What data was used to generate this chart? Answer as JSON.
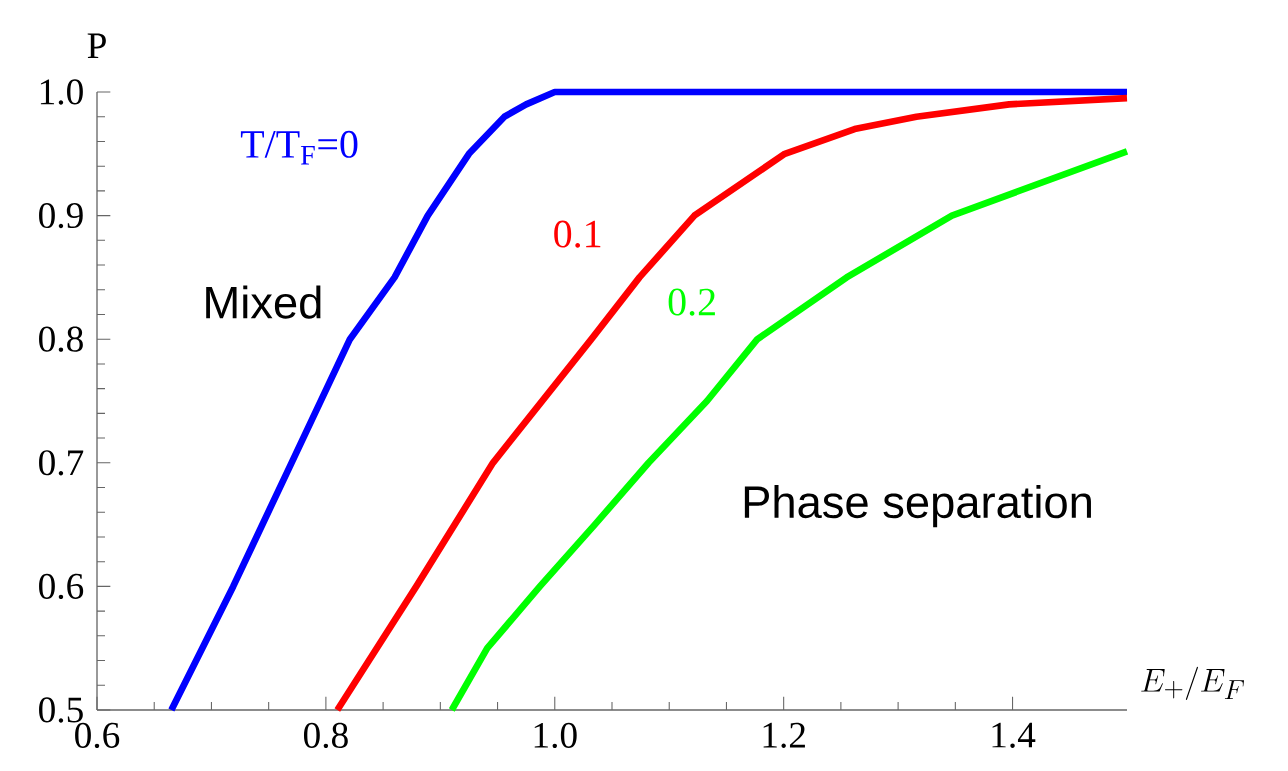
{
  "chart_data": {
    "type": "line",
    "xlabel": "E_{+}/E_{F}",
    "ylabel": "P",
    "xlim": [
      0.6,
      1.5
    ],
    "ylim": [
      0.5,
      1.0
    ],
    "xticks": [
      0.6,
      0.8,
      {
        "value": 1.0,
        "label": "1.0"
      },
      1.2,
      1.4
    ],
    "yticks": [
      0.5,
      0.6,
      0.7,
      0.8,
      0.9,
      {
        "value": 1.0,
        "label": "1.0"
      }
    ],
    "grid": false,
    "marker": "none",
    "line_style": "solid",
    "annotations": [
      "Mixed",
      "Phase separation"
    ],
    "series": [
      {
        "name": "T/T$_{F}$=0",
        "color": "#0000ff",
        "x": [
          0.665,
          0.719,
          0.77,
          0.821,
          0.86,
          0.889,
          0.925,
          0.956,
          0.975,
          1.0,
          1.5
        ],
        "values": [
          0.5,
          0.6,
          0.7,
          0.8,
          0.85,
          0.9,
          0.95,
          0.98,
          0.99,
          1.0,
          1.0
        ]
      },
      {
        "name": "0.1",
        "color": "#ff0000",
        "x": [
          0.81,
          0.879,
          0.946,
          1.032,
          1.074,
          1.122,
          1.201,
          1.262,
          1.316,
          1.397,
          1.5
        ],
        "values": [
          0.5,
          0.6,
          0.7,
          0.8,
          0.85,
          0.9,
          0.95,
          0.97,
          0.98,
          0.99,
          0.995
        ]
      },
      {
        "name": "0.2",
        "color": "#00ff00",
        "x": [
          0.91,
          0.941,
          0.987,
          1.035,
          1.082,
          1.133,
          1.177,
          1.255,
          1.347,
          1.5
        ],
        "values": [
          0.5,
          0.55,
          0.6,
          0.65,
          0.7,
          0.75,
          0.8,
          0.85,
          0.9,
          0.952
        ]
      }
    ]
  }
}
